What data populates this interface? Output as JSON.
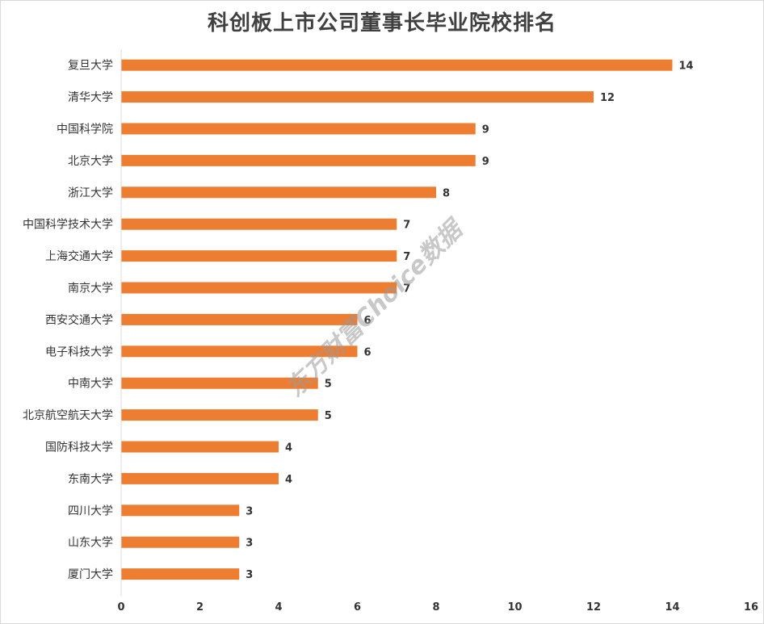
{
  "chart_data": {
    "type": "bar",
    "orientation": "horizontal",
    "title": "科创板上市公司董事长毕业院校排名",
    "categories": [
      "复旦大学",
      "清华大学",
      "中国科学院",
      "北京大学",
      "浙江大学",
      "中国科学技术大学",
      "上海交通大学",
      "南京大学",
      "西安交通大学",
      "电子科技大学",
      "中南大学",
      "北京航空航天大学",
      "国防科技大学",
      "东南大学",
      "四川大学",
      "山东大学",
      "厦门大学"
    ],
    "values": [
      14,
      12,
      9,
      9,
      8,
      7,
      7,
      7,
      6,
      6,
      5,
      5,
      4,
      4,
      3,
      3,
      3
    ],
    "xlim": [
      0,
      16
    ],
    "xticks": [
      0,
      2,
      4,
      6,
      8,
      10,
      12,
      14,
      16
    ],
    "bar_color": "#ED7D31",
    "grid": false,
    "data_labels": true
  },
  "watermark": "东方财富Choice数据"
}
